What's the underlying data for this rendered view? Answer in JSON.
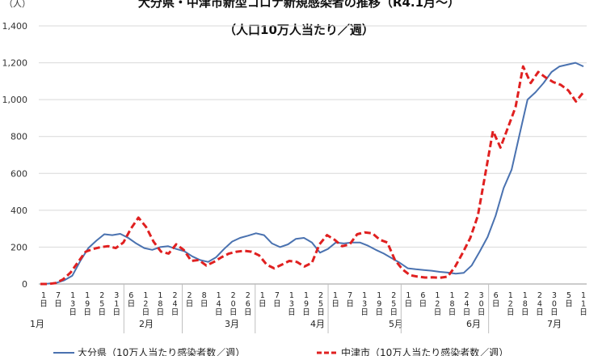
{
  "chart_data": {
    "type": "line",
    "title": "大分県・中津市新型コロナ新規感染者の推移（R4.1月～）",
    "subtitle": "（人口10万人当たり／週）",
    "ylabel": "（人）",
    "ylim": [
      0,
      1400
    ],
    "yticks": [
      "0",
      "200",
      "400",
      "600",
      "800",
      "1,000",
      "1,200",
      "1,400"
    ],
    "grid": true,
    "legend_position": "bottom",
    "x_day_labels": [
      "1日",
      "7日",
      "13日",
      "19日",
      "25日",
      "31日",
      "6日",
      "12日",
      "18日",
      "24日",
      "2日",
      "8日",
      "14日",
      "20日",
      "26日",
      "1日",
      "7日",
      "13日",
      "19日",
      "25日",
      "1日",
      "7日",
      "13日",
      "19日",
      "25日",
      "1日",
      "6日",
      "12日",
      "18日",
      "24日",
      "30日",
      "6日",
      "12日",
      "18日",
      "24日",
      "30日",
      "5日",
      "11日"
    ],
    "x_month_labels": [
      "1月",
      "2月",
      "3月",
      "4月",
      "5月",
      "6月",
      "7月"
    ],
    "series": [
      {
        "name": "大分県（10万人当たり感染者数／週）",
        "color": "#4a72b0",
        "style": "solid",
        "values": [
          0,
          2,
          6,
          20,
          45,
          125,
          195,
          235,
          270,
          265,
          272,
          250,
          220,
          195,
          185,
          200,
          205,
          190,
          178,
          150,
          130,
          120,
          145,
          190,
          230,
          250,
          262,
          275,
          265,
          220,
          200,
          215,
          245,
          250,
          225,
          170,
          190,
          225,
          220,
          225,
          225,
          208,
          185,
          165,
          140,
          115,
          85,
          80,
          76,
          72,
          66,
          62,
          56,
          60,
          100,
          175,
          255,
          370,
          520,
          620,
          810,
          1000,
          1040,
          1090,
          1150,
          1180,
          1190,
          1200,
          1180
        ]
      },
      {
        "name": "中津市（10万人当たり感染者数／週）",
        "color": "#e02020",
        "style": "dashed",
        "values": [
          0,
          0,
          5,
          25,
          62,
          120,
          175,
          190,
          200,
          205,
          195,
          225,
          300,
          360,
          310,
          230,
          175,
          165,
          215,
          185,
          125,
          130,
          100,
          120,
          145,
          165,
          175,
          180,
          175,
          155,
          105,
          85,
          105,
          125,
          120,
          95,
          115,
          215,
          265,
          240,
          205,
          215,
          270,
          280,
          275,
          240,
          225,
          130,
          80,
          48,
          40,
          35,
          36,
          34,
          40,
          95,
          170,
          250,
          370,
          600,
          830,
          740,
          850,
          960,
          1180,
          1090,
          1150,
          1120,
          1095,
          1080,
          1050,
          990,
          1040
        ]
      }
    ]
  }
}
